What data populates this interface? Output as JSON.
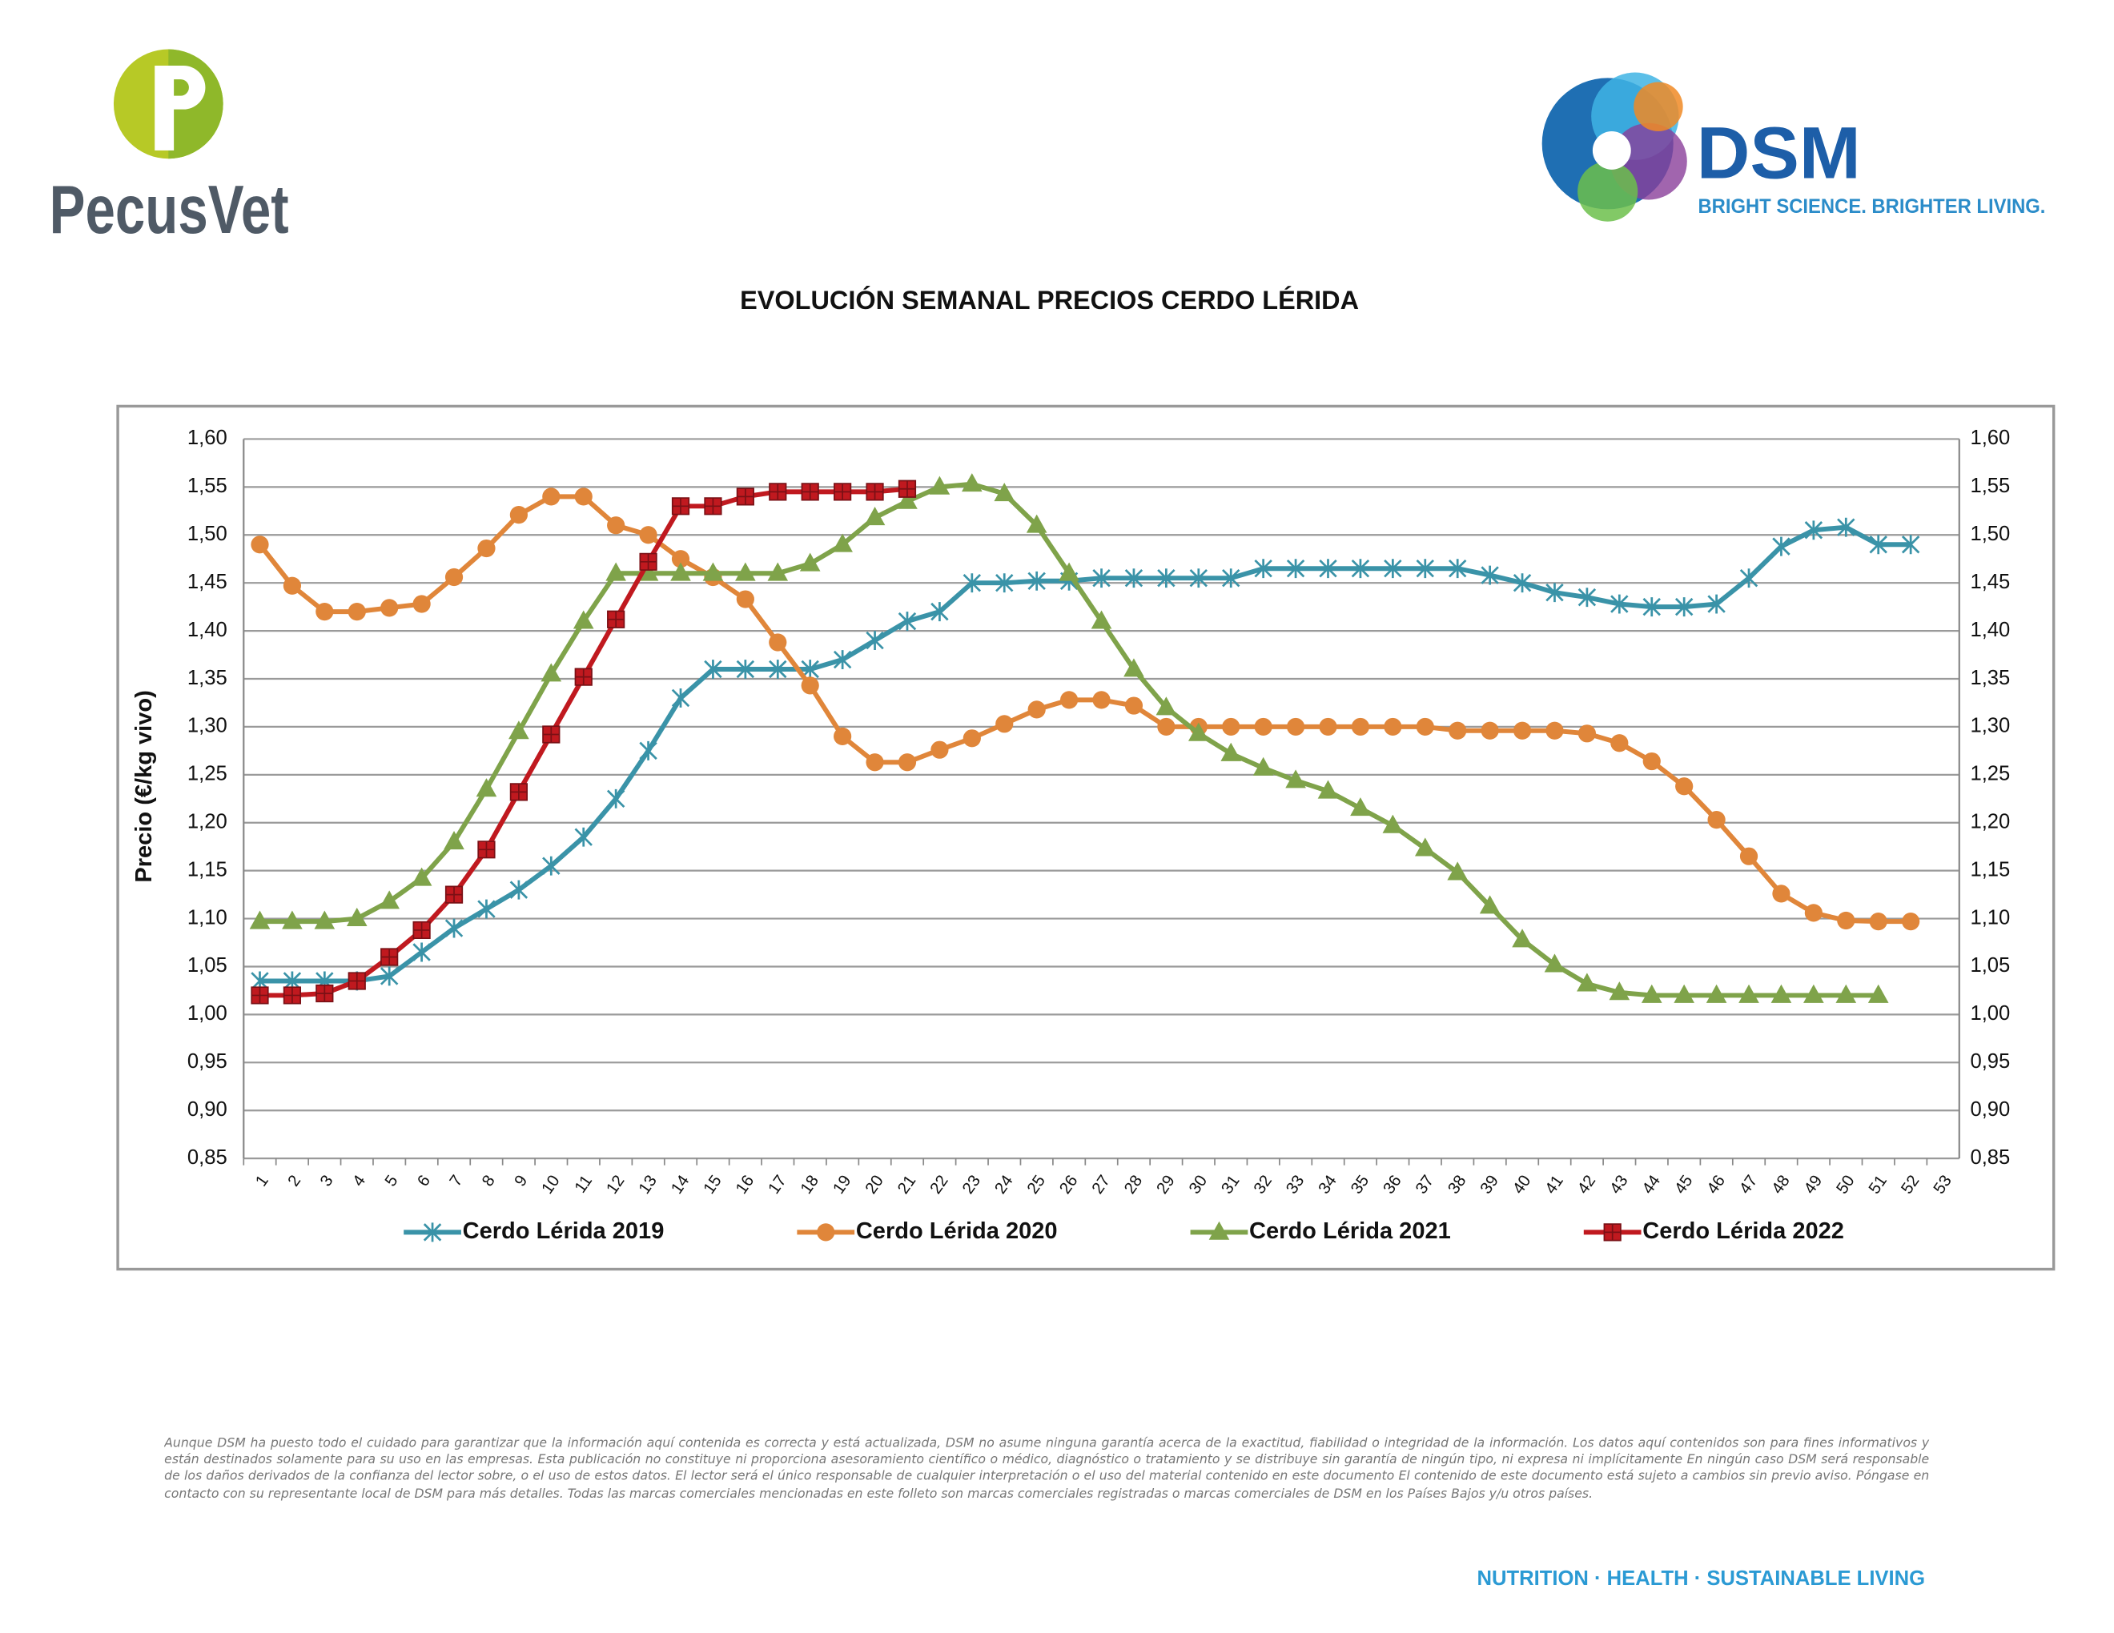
{
  "header": {
    "logo_left": "PecusVet",
    "logo_right": "DSM",
    "tagline": "BRIGHT SCIENCE. BRIGHTER LIVING."
  },
  "chart_data": {
    "type": "line",
    "title": "EVOLUCIÓN SEMANAL PRECIOS CERDO LÉRIDA",
    "ylabel": "Precio (€/kg vivo)",
    "categories": [
      "1",
      "2",
      "3",
      "4",
      "5",
      "6",
      "7",
      "8",
      "9",
      "10",
      "11",
      "12",
      "13",
      "14",
      "15",
      "16",
      "17",
      "18",
      "19",
      "20",
      "21",
      "22",
      "23",
      "24",
      "25",
      "26",
      "27",
      "28",
      "29",
      "30",
      "31",
      "32",
      "33",
      "34",
      "35",
      "36",
      "37",
      "38",
      "39",
      "40",
      "41",
      "42",
      "43",
      "44",
      "45",
      "46",
      "47",
      "48",
      "49",
      "50",
      "51",
      "52",
      "53"
    ],
    "ylim": [
      0.85,
      1.6
    ],
    "yticks": [
      {
        "value": 0.85,
        "label": "0,85"
      },
      {
        "value": 0.9,
        "label": "0,90"
      },
      {
        "value": 0.95,
        "label": "0,95"
      },
      {
        "value": 1.0,
        "label": "1,00"
      },
      {
        "value": 1.05,
        "label": "1,05"
      },
      {
        "value": 1.1,
        "label": "1,10"
      },
      {
        "value": 1.15,
        "label": "1,15"
      },
      {
        "value": 1.2,
        "label": "1,20"
      },
      {
        "value": 1.25,
        "label": "1,25"
      },
      {
        "value": 1.3,
        "label": "1,30"
      },
      {
        "value": 1.35,
        "label": "1,35"
      },
      {
        "value": 1.4,
        "label": "1,40"
      },
      {
        "value": 1.45,
        "label": "1,45"
      },
      {
        "value": 1.5,
        "label": "1,50"
      },
      {
        "value": 1.55,
        "label": "1,55"
      },
      {
        "value": 1.6,
        "label": "1,60"
      }
    ],
    "grid": true,
    "legend": "bottom",
    "series": [
      {
        "name": "Cerdo Lérida 2019",
        "color": "#3a93a8",
        "marker": "x",
        "values": [
          1.035,
          1.035,
          1.035,
          1.035,
          1.04,
          1.065,
          1.09,
          1.11,
          1.13,
          1.155,
          1.185,
          1.225,
          1.275,
          1.33,
          1.36,
          1.36,
          1.36,
          1.36,
          1.37,
          1.39,
          1.41,
          1.42,
          1.45,
          1.45,
          1.452,
          1.452,
          1.455,
          1.455,
          1.455,
          1.455,
          1.455,
          1.465,
          1.465,
          1.465,
          1.465,
          1.465,
          1.465,
          1.465,
          1.458,
          1.45,
          1.44,
          1.435,
          1.428,
          1.425,
          1.425,
          1.428,
          1.455,
          1.488,
          1.505,
          1.508,
          1.49,
          1.49,
          null
        ]
      },
      {
        "name": "Cerdo Lérida 2020",
        "color": "#e0863a",
        "marker": "circle",
        "values": [
          1.49,
          1.447,
          1.42,
          1.42,
          1.424,
          1.428,
          1.456,
          1.486,
          1.521,
          1.54,
          1.54,
          1.51,
          1.5,
          1.475,
          1.456,
          1.433,
          1.388,
          1.343,
          1.29,
          1.263,
          1.263,
          1.276,
          1.288,
          1.303,
          1.318,
          1.328,
          1.328,
          1.322,
          1.3,
          1.3,
          1.3,
          1.3,
          1.3,
          1.3,
          1.3,
          1.3,
          1.3,
          1.296,
          1.296,
          1.296,
          1.296,
          1.293,
          1.283,
          1.264,
          1.238,
          1.203,
          1.165,
          1.126,
          1.106,
          1.098,
          1.097,
          1.097,
          null
        ]
      },
      {
        "name": "Cerdo Lérida 2021",
        "color": "#7fa34a",
        "marker": "triangle",
        "values": [
          1.097,
          1.097,
          1.097,
          1.1,
          1.118,
          1.142,
          1.18,
          1.235,
          1.295,
          1.355,
          1.41,
          1.46,
          1.46,
          1.46,
          1.46,
          1.46,
          1.46,
          1.47,
          1.49,
          1.518,
          1.535,
          1.55,
          1.553,
          1.543,
          1.51,
          1.46,
          1.41,
          1.36,
          1.32,
          1.293,
          1.272,
          1.257,
          1.244,
          1.233,
          1.215,
          1.197,
          1.173,
          1.148,
          1.113,
          1.078,
          1.052,
          1.032,
          1.023,
          1.02,
          1.02,
          1.02,
          1.02,
          1.02,
          1.02,
          1.02,
          1.02,
          null,
          null
        ]
      },
      {
        "name": "Cerdo Lérida 2022",
        "color": "#c0191f",
        "marker": "square",
        "values": [
          1.02,
          1.02,
          1.022,
          1.035,
          1.06,
          1.088,
          1.125,
          1.172,
          1.232,
          1.292,
          1.352,
          1.412,
          1.472,
          1.53,
          1.53,
          1.54,
          1.545,
          1.545,
          1.545,
          1.545,
          1.548,
          null,
          null,
          null,
          null,
          null,
          null,
          null,
          null,
          null,
          null,
          null,
          null,
          null,
          null,
          null,
          null,
          null,
          null,
          null,
          null,
          null,
          null,
          null,
          null,
          null,
          null,
          null,
          null,
          null,
          null,
          null,
          null
        ]
      }
    ]
  },
  "footer": {
    "disclaimer": "Aunque DSM ha puesto todo el cuidado para garantizar que la información aquí contenida es correcta y está actualizada, DSM no asume ninguna garantía acerca de la exactitud, fiabilidad o integridad de la información. Los datos aquí contenidos son para fines informativos y están destinados solamente para su uso en las empresas. Esta publicación no constituye ni proporciona asesoramiento científico o médico, diagnóstico o tratamiento y se distribuye sin garantía de ningún tipo, ni expresa ni implícitamente En ningún caso DSM será responsable de los daños derivados de la confianza del lector sobre, o el uso de estos datos. El lector será el único responsable de cualquier interpretación o el uso del material contenido en este documento El contenido de este documento está sujeto a cambios sin previo aviso. Póngase en contacto con su representante local de DSM para más detalles. Todas las marcas comerciales mencionadas en este folleto son marcas comerciales registradas o marcas comerciales de DSM en los Países Bajos y/u otros países.",
    "slogan": "NUTRITION · HEALTH · SUSTAINABLE LIVING"
  }
}
